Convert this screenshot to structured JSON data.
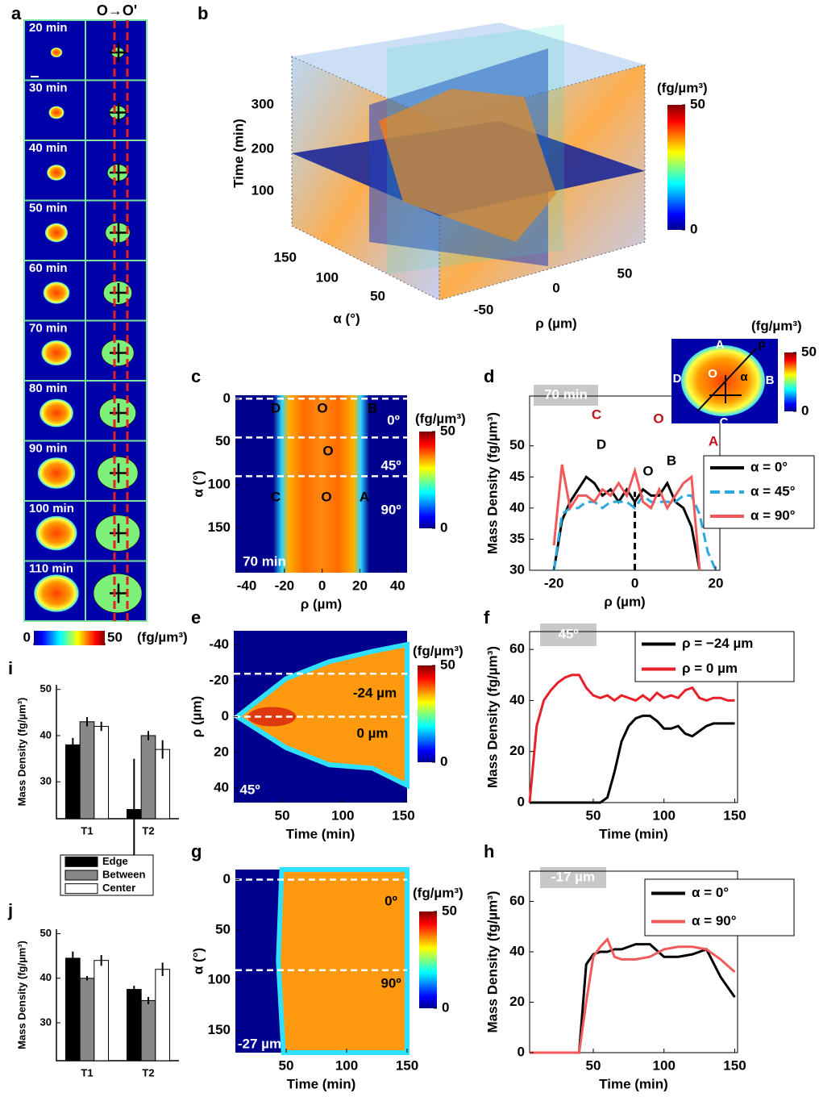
{
  "chart_data": [
    {
      "type": "image-strip",
      "label": "a",
      "title": "O→O'",
      "frames": [
        "20 min",
        "30 min",
        "40 min",
        "50 min",
        "60 min",
        "70 min",
        "80 min",
        "90 min",
        "100 min",
        "110 min"
      ],
      "colorbar": {
        "label": "(fg/µm³)",
        "ticks": [
          0,
          50
        ]
      }
    },
    {
      "type": "volume",
      "label": "b",
      "zlabel": "Time (min)",
      "zticks": [
        100,
        200,
        300
      ],
      "alabel": "α (°)",
      "aticks": [
        50,
        100,
        150
      ],
      "rholabel": "ρ (µm)",
      "rhoticks": [
        -50,
        0,
        50
      ],
      "colorbar": {
        "label": "(fg/µm³)",
        "ticks": [
          0,
          50
        ]
      }
    },
    {
      "type": "heatmap",
      "label": "c",
      "xlabel": "ρ (µm)",
      "ylabel": "α (°)",
      "xlim": [
        -46,
        45
      ],
      "ylim": [
        -4,
        202
      ],
      "xticks": [
        -40,
        -20,
        0,
        20,
        40
      ],
      "yticks": [
        0,
        50,
        100,
        150
      ],
      "hlines": [
        0,
        45,
        90
      ],
      "annotations": [
        "D",
        "O",
        "B",
        "O",
        "C",
        "O",
        "A",
        "0º",
        "45º",
        "90º",
        "70 min"
      ],
      "colorbar": {
        "label": "(fg/µm³)",
        "ticks": [
          0,
          50
        ]
      }
    },
    {
      "type": "line",
      "label": "d",
      "xlabel": "ρ (µm)",
      "ylabel": "Mass Density (fg/µm³)",
      "xlim": [
        -26,
        21
      ],
      "ylim": [
        30,
        58
      ],
      "xticks": [
        -20,
        0,
        20
      ],
      "yticks": [
        30,
        35,
        40,
        45,
        50
      ],
      "x": [
        -20,
        -18,
        -16,
        -14,
        -12,
        -10,
        -8,
        -6,
        -4,
        -2,
        0,
        2,
        4,
        6,
        8,
        10,
        12,
        14,
        16,
        18,
        20
      ],
      "series": [
        {
          "name": "α = 0°",
          "color": "#000000",
          "values": [
            30,
            38,
            41,
            43,
            45,
            44,
            42,
            43,
            41,
            43,
            41,
            43,
            42,
            42,
            44,
            41,
            40,
            37,
            30,
            null,
            null
          ]
        },
        {
          "name": "α = 45°",
          "color": "#29a9e0",
          "dash": true,
          "values": [
            30,
            39,
            40,
            40,
            41,
            41,
            40,
            41,
            41,
            41,
            40,
            42,
            41,
            41,
            41,
            41,
            42,
            42,
            39,
            33,
            30
          ]
        },
        {
          "name": "α = 90°",
          "color": "#f05a5a",
          "values": [
            34,
            47,
            40,
            42,
            42,
            41,
            43,
            42,
            44,
            42,
            46,
            41,
            40,
            43,
            40,
            42,
            44,
            45,
            30,
            null,
            null
          ]
        }
      ],
      "vlines": [
        0
      ],
      "annotations": [
        "70 min",
        "C",
        "O",
        "A",
        "D",
        "O",
        "B"
      ],
      "inset": {
        "annotations": [
          "A",
          "B",
          "C",
          "D",
          "O",
          "ρ",
          "α"
        ],
        "colorbar": {
          "label": "(fg/µm³)",
          "ticks": [
            0,
            50
          ]
        }
      }
    },
    {
      "type": "heatmap",
      "label": "e",
      "xlabel": "Time (min)",
      "ylabel": "ρ (µm)",
      "xlim": [
        10,
        153
      ],
      "ylim": [
        -48,
        48
      ],
      "xticks": [
        50,
        100,
        150
      ],
      "yticks": [
        -40,
        -20,
        0,
        20,
        40
      ],
      "hlines": [
        -24,
        0
      ],
      "annotations": [
        "-24 µm",
        "0 µm",
        "45º"
      ],
      "colorbar": {
        "label": "(fg/µm³)",
        "ticks": [
          0,
          50
        ]
      }
    },
    {
      "type": "line",
      "label": "f",
      "xlabel": "Time (min)",
      "ylabel": "Mass Density (fg/µm³)",
      "xlim": [
        5,
        152
      ],
      "ylim": [
        0,
        67
      ],
      "xticks": [
        50,
        100,
        150
      ],
      "yticks": [
        0,
        20,
        40,
        60
      ],
      "x": [
        5,
        10,
        15,
        20,
        25,
        30,
        35,
        40,
        45,
        50,
        55,
        60,
        65,
        70,
        75,
        80,
        85,
        90,
        95,
        100,
        105,
        110,
        115,
        120,
        125,
        130,
        135,
        140,
        145,
        150
      ],
      "series": [
        {
          "name": "ρ = −24 µm",
          "color": "#000000",
          "values": [
            0,
            0,
            0,
            0,
            0,
            0,
            0,
            0,
            0,
            0,
            0,
            2,
            12,
            24,
            30,
            33,
            34,
            34,
            32,
            29,
            29,
            30,
            27,
            26,
            28,
            30,
            31,
            31,
            31,
            31
          ]
        },
        {
          "name": "ρ = 0 µm",
          "color": "#e8202a",
          "values": [
            0,
            30,
            40,
            44,
            47,
            49,
            50,
            50,
            45,
            42,
            41,
            42,
            40,
            42,
            41,
            40,
            42,
            40,
            43,
            41,
            42,
            41,
            44,
            45,
            41,
            40,
            41,
            41,
            40,
            40
          ]
        }
      ],
      "annotations": [
        "45º"
      ]
    },
    {
      "type": "heatmap",
      "label": "g",
      "xlabel": "Time (min)",
      "ylabel": "α (°)",
      "xlim": [
        8,
        150
      ],
      "ylim": [
        -10,
        172
      ],
      "xticks": [
        50,
        100,
        150
      ],
      "yticks": [
        0,
        50,
        100,
        150
      ],
      "hlines": [
        0,
        90
      ],
      "annotations": [
        "0º",
        "90º",
        "-27 µm"
      ],
      "colorbar": {
        "label": "(fg/µm³)",
        "ticks": [
          0,
          50
        ]
      }
    },
    {
      "type": "line",
      "label": "h",
      "xlabel": "Time (min)",
      "ylabel": "Mass Density (fg/µm³)",
      "xlim": [
        5,
        152
      ],
      "ylim": [
        0,
        72
      ],
      "xticks": [
        50,
        100,
        150
      ],
      "yticks": [
        0,
        20,
        40,
        60
      ],
      "x": [
        5,
        10,
        20,
        30,
        40,
        45,
        50,
        55,
        60,
        65,
        70,
        80,
        90,
        100,
        110,
        120,
        130,
        140,
        150
      ],
      "series": [
        {
          "name": "α = 0°",
          "color": "#000000",
          "values": [
            0,
            0,
            0,
            0,
            0,
            35,
            39,
            40,
            40,
            41,
            41,
            43,
            43,
            38,
            38,
            39,
            41,
            30,
            22
          ]
        },
        {
          "name": "α = 90°",
          "color": "#f05a5a",
          "values": [
            0,
            0,
            0,
            0,
            0,
            20,
            38,
            42,
            45,
            38,
            37,
            37,
            38,
            41,
            42,
            42,
            41,
            37,
            32
          ]
        }
      ],
      "annotations": [
        "-17 µm"
      ]
    },
    {
      "type": "bar",
      "label": "i",
      "ylabel": "Mass Density (fg/µm³)",
      "categories": [
        "T1",
        "T2"
      ],
      "ylim": [
        22,
        51
      ],
      "yticks": [
        30,
        40,
        50
      ],
      "series": [
        {
          "name": "Edge",
          "color": "#000000",
          "values": [
            38,
            24
          ],
          "errors": [
            1.5,
            11
          ]
        },
        {
          "name": "Between",
          "color": "#888888",
          "values": [
            43,
            40
          ],
          "errors": [
            1,
            1
          ]
        },
        {
          "name": "Center",
          "color": "#ffffff",
          "values": [
            42,
            37
          ],
          "errors": [
            1,
            2
          ]
        }
      ]
    },
    {
      "type": "bar",
      "label": "j",
      "ylabel": "Mass Density (fg/µm³)",
      "categories": [
        "T1",
        "T2"
      ],
      "ylim": [
        21.5,
        51
      ],
      "yticks": [
        30,
        40,
        50
      ],
      "series": [
        {
          "color": "#000000",
          "values": [
            44.5,
            37.5
          ],
          "errors": [
            1.5,
            0.8
          ]
        },
        {
          "color": "#888888",
          "values": [
            40,
            35
          ],
          "errors": [
            0.5,
            0.8
          ]
        },
        {
          "color": "#ffffff",
          "values": [
            44,
            42
          ],
          "errors": [
            1.2,
            1.5
          ]
        }
      ]
    }
  ]
}
